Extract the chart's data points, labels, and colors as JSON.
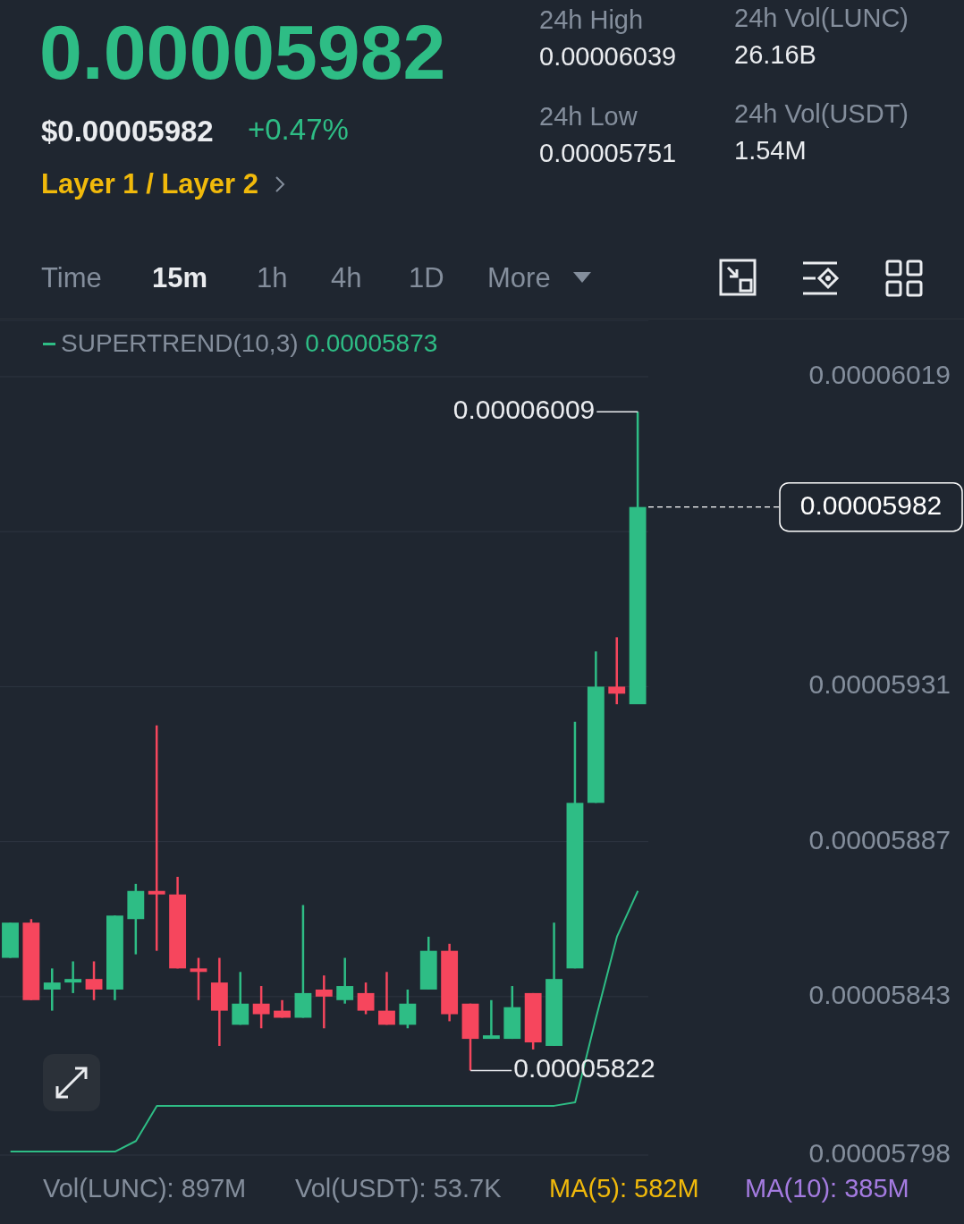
{
  "chart_data": {
    "type": "candlestick",
    "title": "0.00005982",
    "subtitle": "$0.00005982",
    "annotations": [
      "+0.47%",
      "Layer 1 / Layer 2",
      "24h High",
      "0.00006039",
      "24h Low",
      "0.00005751",
      "24h Vol(LUNC)",
      "26.16B",
      "24h Vol(USDT)",
      "1.54M",
      "Time",
      "15m",
      "1h",
      "4h",
      "1D",
      "More",
      "Vol(LUNC): 897M",
      "Vol(USDT): 53.7K",
      "MA(5): 582M",
      "MA(10): 385M",
      "0.00006009",
      "0.00005822",
      "0.00005873"
    ],
    "categories": [
      null,
      null,
      null,
      null,
      null,
      null,
      null,
      null,
      null,
      null,
      null,
      null,
      null,
      null,
      null,
      null,
      null,
      null,
      null,
      null,
      null,
      null,
      null,
      null,
      null,
      null,
      null,
      null,
      null,
      null,
      null
    ],
    "ohlc": [
      [
        5.854e-05,
        5.864e-05,
        5.854e-05,
        5.864e-05
      ],
      [
        5.864e-05,
        5.865e-05,
        5.842e-05,
        5.842e-05
      ],
      [
        5.845e-05,
        5.851e-05,
        5.839e-05,
        5.847e-05
      ],
      [
        5.847e-05,
        5.853e-05,
        5.844e-05,
        5.848e-05
      ],
      [
        5.848e-05,
        5.853e-05,
        5.842e-05,
        5.845e-05
      ],
      [
        5.845e-05,
        5.866e-05,
        5.842e-05,
        5.866e-05
      ],
      [
        5.865e-05,
        5.875e-05,
        5.855e-05,
        5.873e-05
      ],
      [
        5.873e-05,
        5.92e-05,
        5.856e-05,
        5.872e-05
      ],
      [
        5.872e-05,
        5.877e-05,
        5.851e-05,
        5.851e-05
      ],
      [
        5.851e-05,
        5.854e-05,
        5.842e-05,
        5.85e-05
      ],
      [
        5.847e-05,
        5.854e-05,
        5.829e-05,
        5.839e-05
      ],
      [
        5.835e-05,
        5.85e-05,
        5.835e-05,
        5.841e-05
      ],
      [
        5.841e-05,
        5.846e-05,
        5.834e-05,
        5.838e-05
      ],
      [
        5.839e-05,
        5.842e-05,
        5.837e-05,
        5.837e-05
      ],
      [
        5.837e-05,
        5.869e-05,
        5.837e-05,
        5.844e-05
      ],
      [
        5.845e-05,
        5.849e-05,
        5.834e-05,
        5.843e-05
      ],
      [
        5.842e-05,
        5.854e-05,
        5.841e-05,
        5.846e-05
      ],
      [
        5.844e-05,
        5.847e-05,
        5.838e-05,
        5.839e-05
      ],
      [
        5.839e-05,
        5.85e-05,
        5.835e-05,
        5.835e-05
      ],
      [
        5.835e-05,
        5.845e-05,
        5.834e-05,
        5.841e-05
      ],
      [
        5.845e-05,
        5.86e-05,
        5.845e-05,
        5.856e-05
      ],
      [
        5.856e-05,
        5.858e-05,
        5.836e-05,
        5.838e-05
      ],
      [
        5.841e-05,
        5.841e-05,
        5.822e-05,
        5.831e-05
      ],
      [
        5.831e-05,
        5.842e-05,
        5.831e-05,
        5.832e-05
      ],
      [
        5.831e-05,
        5.846e-05,
        5.831e-05,
        5.84e-05
      ],
      [
        5.844e-05,
        5.844e-05,
        5.828e-05,
        5.83e-05
      ],
      [
        5.829e-05,
        5.864e-05,
        5.829e-05,
        5.848e-05
      ],
      [
        5.851e-05,
        5.921e-05,
        5.851e-05,
        5.898e-05
      ],
      [
        5.898e-05,
        5.941e-05,
        5.898e-05,
        5.931e-05
      ],
      [
        5.931e-05,
        5.945e-05,
        5.926e-05,
        5.929e-05
      ],
      [
        5.926e-05,
        6.009e-05,
        5.926e-05,
        5.982e-05
      ]
    ],
    "colors": [
      "#2ebd85",
      "#f6465d",
      "#2ebd85",
      "#2ebd85",
      "#f6465d",
      "#2ebd85",
      "#2ebd85",
      "#f6465d",
      "#f6465d",
      "#f6465d",
      "#f6465d",
      "#2ebd85",
      "#f6465d",
      "#f6465d",
      "#2ebd85",
      "#f6465d",
      "#2ebd85",
      "#f6465d",
      "#f6465d",
      "#2ebd85",
      "#2ebd85",
      "#f6465d",
      "#f6465d",
      "#2ebd85",
      "#2ebd85",
      "#f6465d",
      "#2ebd85",
      "#2ebd85",
      "#2ebd85",
      "#f6465d",
      "#2ebd85"
    ],
    "series": [
      {
        "type": "line",
        "name": "SUPERTREND(10,3)",
        "color": "#2ebd85",
        "values": [
          5.799e-05,
          5.799e-05,
          5.799e-05,
          5.799e-05,
          5.799e-05,
          5.799e-05,
          5.802e-05,
          5.812e-05,
          5.812e-05,
          5.812e-05,
          5.812e-05,
          5.812e-05,
          5.812e-05,
          5.812e-05,
          5.812e-05,
          5.812e-05,
          5.812e-05,
          5.812e-05,
          5.812e-05,
          5.812e-05,
          5.812e-05,
          5.812e-05,
          5.812e-05,
          5.812e-05,
          5.812e-05,
          5.812e-05,
          5.812e-05,
          5.813e-05,
          5.837e-05,
          5.86e-05,
          5.873e-05
        ]
      }
    ],
    "ylim": [
      5.798e-05,
      6.035e-05
    ],
    "yticks": [
      {
        "value": 5.798e-05,
        "label": "0.00005798"
      },
      {
        "value": 5.843e-05,
        "label": "0.00005843"
      },
      {
        "value": 5.887e-05,
        "label": "0.00005887"
      },
      {
        "value": 5.931e-05,
        "label": "0.00005931"
      },
      {
        "value": 5.975e-05,
        "label": null
      },
      {
        "value": 6.019e-05,
        "label": "0.00006019"
      }
    ],
    "ref_lines": [
      {
        "axis": "y",
        "value": 5.982e-05,
        "label": "0.00005982",
        "color": "#ffffff",
        "line_style": "dashed"
      }
    ],
    "grid": "y",
    "marker": "none",
    "line_style": "solid"
  }
}
